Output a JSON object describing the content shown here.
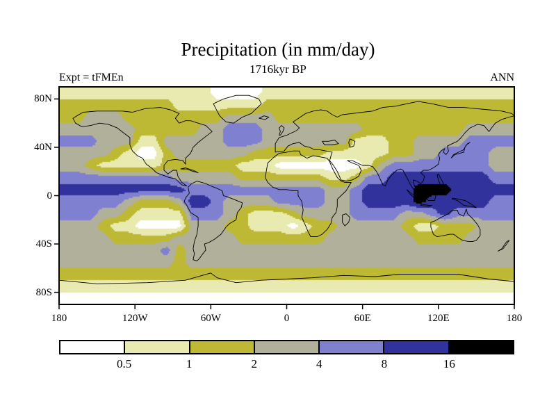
{
  "header": {
    "title": "Precipitation (in mm/day)",
    "subtitle": "1716kyr BP",
    "left_label": "Expt = tFMEn",
    "right_label": "ANN"
  },
  "axes": {
    "lat_ticks": [
      {
        "label": "80N",
        "lat": 80
      },
      {
        "label": "40N",
        "lat": 40
      },
      {
        "label": "0",
        "lat": 0
      },
      {
        "label": "40S",
        "lat": -40
      },
      {
        "label": "80S",
        "lat": -80
      }
    ],
    "lon_ticks": [
      {
        "label": "180",
        "lon": -180
      },
      {
        "label": "120W",
        "lon": -120
      },
      {
        "label": "60W",
        "lon": -60
      },
      {
        "label": "0",
        "lon": 0
      },
      {
        "label": "60E",
        "lon": 60
      },
      {
        "label": "120E",
        "lon": 120
      },
      {
        "label": "180",
        "lon": 180
      }
    ]
  },
  "colorbar": {
    "boundary_labels": [
      "0.5",
      "1",
      "2",
      "4",
      "8",
      "16"
    ],
    "segment_colors": [
      "#ffffff",
      "#e8eab0",
      "#bdb934",
      "#b1b09a",
      "#8080d0",
      "#32329c",
      "#000000"
    ],
    "bins": [
      "<0.5",
      "0.5-1",
      "1-2",
      "2-4",
      "4-8",
      "8-16",
      ">16"
    ]
  },
  "chart_data": {
    "type": "heatmap",
    "title": "Precipitation (in mm/day)",
    "subtitle": "1716kyr BP",
    "experiment": "tFMEn",
    "season": "ANN",
    "units": "mm/day",
    "projection": "equirectangular global map with coastlines",
    "lon_range": [
      -180,
      180
    ],
    "lat_range": [
      -90,
      90
    ],
    "contour_levels": [
      0.5,
      1,
      2,
      4,
      8,
      16
    ],
    "category_bins": [
      "<0.5",
      "0.5-1",
      "1-2",
      "2-4",
      "4-8",
      "8-16",
      ">16"
    ],
    "category_colors": [
      "#ffffff",
      "#e8eab0",
      "#bdb934",
      "#b1b09a",
      "#8080d0",
      "#32329c",
      "#000000"
    ],
    "grid_encoding": "category index per 10-degree cell; rows from 85N to 85S, columns from 175W to 175E",
    "grid": [
      [
        1,
        1,
        1,
        1,
        1,
        1,
        1,
        1,
        1,
        1,
        1,
        1,
        0,
        0,
        0,
        0,
        1,
        1,
        1,
        1,
        1,
        1,
        1,
        1,
        1,
        1,
        1,
        1,
        1,
        1,
        1,
        1,
        1,
        1,
        1,
        1
      ],
      [
        2,
        2,
        2,
        2,
        2,
        2,
        2,
        2,
        2,
        1,
        1,
        1,
        1,
        1,
        1,
        1,
        2,
        2,
        2,
        2,
        2,
        2,
        2,
        2,
        2,
        2,
        2,
        2,
        2,
        2,
        2,
        2,
        2,
        2,
        2,
        2
      ],
      [
        2,
        2,
        3,
        3,
        3,
        2,
        2,
        2,
        2,
        2,
        2,
        2,
        2,
        3,
        3,
        3,
        3,
        2,
        2,
        2,
        2,
        2,
        2,
        2,
        2,
        2,
        2,
        2,
        2,
        2,
        2,
        2,
        2,
        2,
        2,
        2
      ],
      [
        3,
        3,
        3,
        3,
        3,
        3,
        2,
        2,
        2,
        2,
        2,
        3,
        3,
        4,
        4,
        4,
        3,
        3,
        3,
        3,
        3,
        3,
        3,
        3,
        2,
        2,
        2,
        2,
        2,
        2,
        2,
        2,
        3,
        3,
        3,
        3
      ],
      [
        4,
        4,
        4,
        3,
        3,
        3,
        1,
        1,
        3,
        3,
        3,
        3,
        3,
        4,
        4,
        4,
        3,
        3,
        3,
        3,
        3,
        3,
        3,
        1,
        1,
        1,
        2,
        2,
        3,
        3,
        3,
        3,
        4,
        4,
        4,
        4
      ],
      [
        3,
        3,
        3,
        3,
        2,
        1,
        0,
        0,
        2,
        3,
        3,
        3,
        3,
        3,
        3,
        2,
        2,
        2,
        2,
        2,
        2,
        1,
        1,
        1,
        1,
        1,
        2,
        2,
        3,
        3,
        4,
        4,
        4,
        4,
        3,
        3
      ],
      [
        3,
        3,
        2,
        1,
        1,
        1,
        1,
        1,
        2,
        2,
        2,
        2,
        2,
        2,
        1,
        1,
        1,
        0,
        0,
        0,
        0,
        0,
        0,
        0,
        1,
        3,
        4,
        4,
        4,
        4,
        4,
        4,
        4,
        4,
        3,
        3
      ],
      [
        4,
        4,
        4,
        4,
        4,
        4,
        4,
        4,
        4,
        3,
        3,
        3,
        3,
        3,
        2,
        2,
        2,
        2,
        2,
        2,
        2,
        1,
        1,
        2,
        4,
        4,
        5,
        5,
        5,
        5,
        5,
        5,
        5,
        5,
        4,
        4
      ],
      [
        5,
        5,
        5,
        5,
        5,
        5,
        5,
        5,
        5,
        5,
        4,
        4,
        4,
        4,
        4,
        4,
        4,
        4,
        4,
        4,
        4,
        3,
        3,
        4,
        5,
        5,
        5,
        5,
        6,
        6,
        6,
        5,
        5,
        5,
        5,
        5
      ],
      [
        4,
        4,
        4,
        4,
        4,
        3,
        2,
        2,
        2,
        3,
        5,
        5,
        4,
        3,
        3,
        3,
        3,
        4,
        4,
        4,
        4,
        3,
        3,
        4,
        5,
        5,
        5,
        5,
        6,
        5,
        5,
        5,
        5,
        5,
        4,
        4
      ],
      [
        4,
        4,
        4,
        3,
        3,
        2,
        1,
        1,
        1,
        1,
        4,
        4,
        4,
        3,
        2,
        1,
        1,
        1,
        2,
        3,
        3,
        3,
        3,
        4,
        4,
        4,
        4,
        3,
        3,
        4,
        5,
        4,
        4,
        4,
        4,
        4
      ],
      [
        3,
        3,
        3,
        2,
        1,
        1,
        0,
        0,
        0,
        0,
        3,
        3,
        3,
        2,
        2,
        1,
        1,
        1,
        0,
        1,
        2,
        2,
        3,
        3,
        3,
        3,
        3,
        2,
        1,
        1,
        2,
        2,
        2,
        3,
        3,
        3
      ],
      [
        3,
        3,
        3,
        3,
        2,
        2,
        2,
        2,
        2,
        3,
        3,
        3,
        3,
        3,
        2,
        2,
        2,
        2,
        2,
        2,
        2,
        3,
        3,
        3,
        3,
        3,
        3,
        3,
        2,
        2,
        2,
        2,
        3,
        3,
        3,
        3
      ],
      [
        3,
        3,
        3,
        3,
        3,
        3,
        3,
        3,
        4,
        2,
        3,
        3,
        3,
        3,
        3,
        3,
        3,
        3,
        3,
        3,
        3,
        3,
        3,
        3,
        3,
        3,
        3,
        3,
        3,
        3,
        3,
        3,
        3,
        3,
        3,
        3
      ],
      [
        3,
        3,
        3,
        3,
        3,
        3,
        3,
        3,
        3,
        2,
        3,
        3,
        3,
        3,
        3,
        3,
        3,
        3,
        3,
        3,
        3,
        3,
        3,
        3,
        3,
        3,
        3,
        3,
        3,
        3,
        3,
        3,
        3,
        3,
        3,
        3
      ],
      [
        2,
        2,
        2,
        2,
        2,
        2,
        2,
        2,
        2,
        2,
        2,
        2,
        2,
        2,
        2,
        2,
        2,
        2,
        2,
        2,
        2,
        2,
        2,
        2,
        2,
        2,
        2,
        2,
        2,
        2,
        2,
        2,
        2,
        2,
        2,
        2
      ],
      [
        1,
        1,
        1,
        1,
        1,
        1,
        1,
        1,
        1,
        1,
        1,
        1,
        1,
        1,
        1,
        1,
        1,
        1,
        1,
        1,
        1,
        1,
        1,
        1,
        1,
        1,
        1,
        1,
        1,
        1,
        1,
        1,
        1,
        1,
        1,
        1
      ],
      [
        0,
        0,
        0,
        0,
        0,
        0,
        0,
        0,
        0,
        0,
        0,
        0,
        0,
        0,
        0,
        0,
        0,
        0,
        0,
        0,
        0,
        0,
        0,
        0,
        0,
        0,
        0,
        0,
        0,
        0,
        0,
        0,
        0,
        0,
        0,
        0
      ]
    ]
  }
}
